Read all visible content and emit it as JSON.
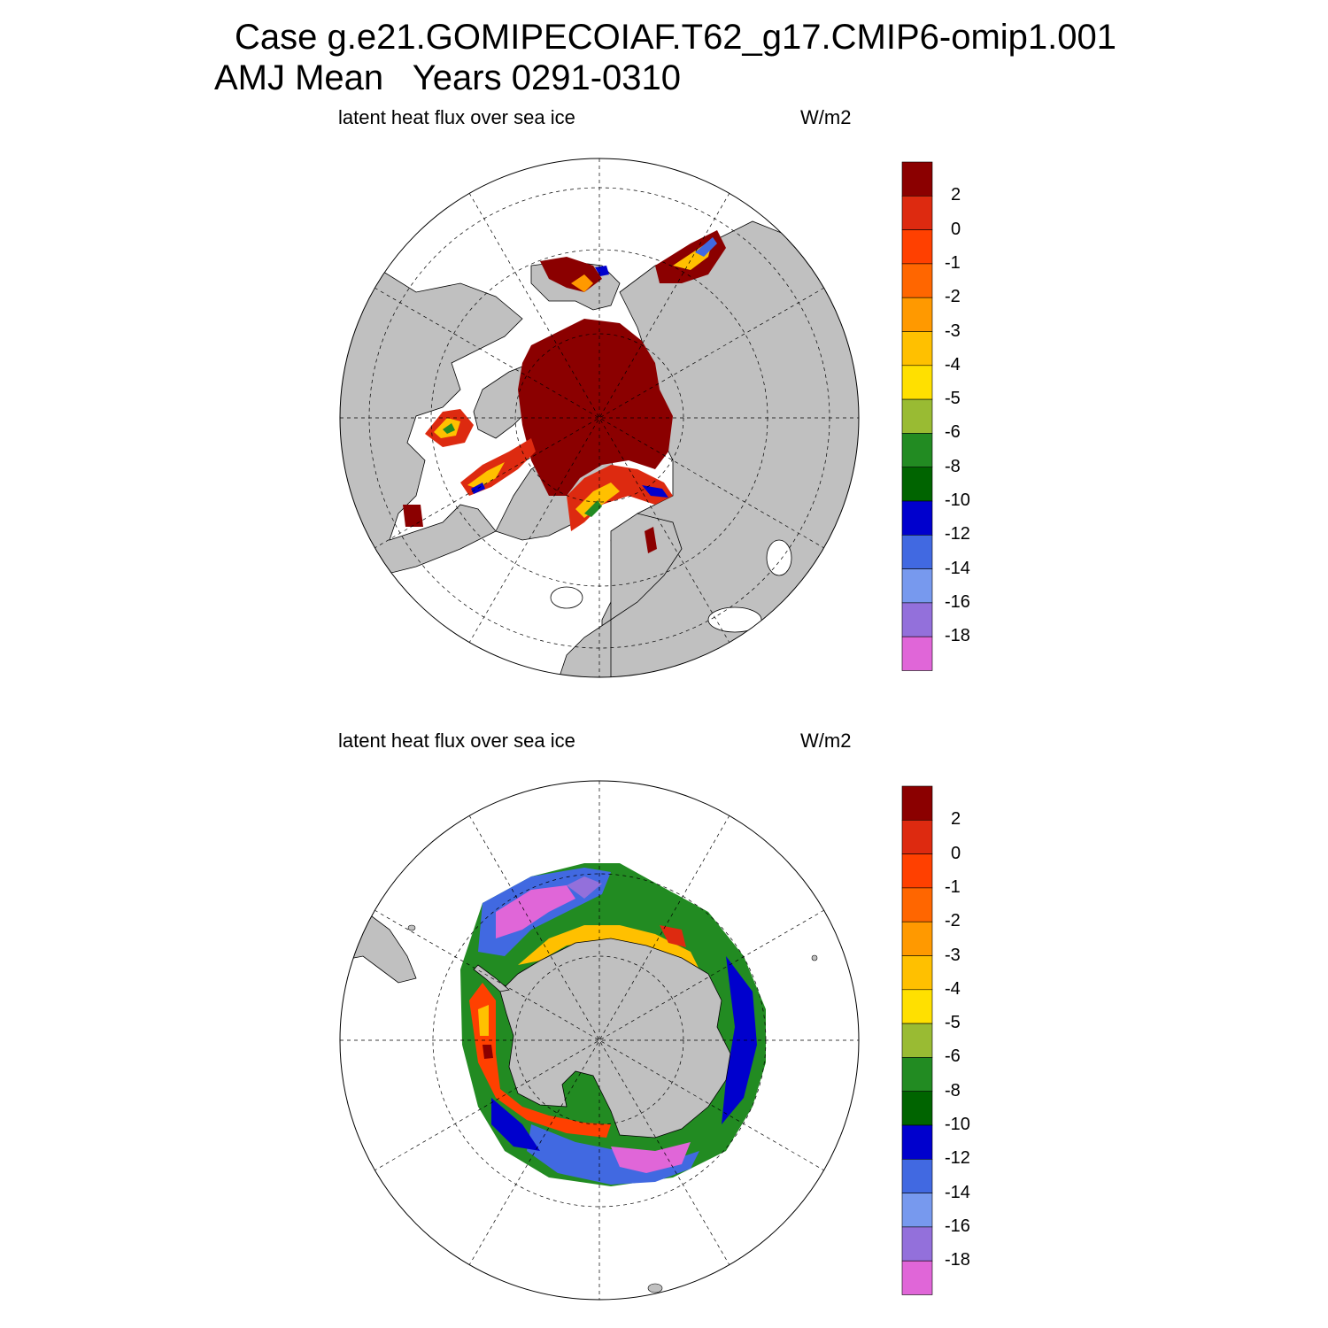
{
  "title": {
    "line1": "Case g.e21.GOMIPECOIAF.T62_g17.CMIP6-omip1.001",
    "line2": "AMJ Mean   Years 0291-0310"
  },
  "panels": [
    {
      "id": "north",
      "left_label": "latent heat flux over sea ice",
      "right_label": "W/m2"
    },
    {
      "id": "south",
      "left_label": "latent heat flux over sea ice",
      "right_label": "W/m2"
    }
  ],
  "colorbar": {
    "labels": [
      "2",
      "0",
      "-1",
      "-2",
      "-3",
      "-4",
      "-5",
      "-6",
      "-8",
      "-10",
      "-12",
      "-14",
      "-16",
      "-18"
    ],
    "colors": [
      "#8b0000",
      "#dd2a10",
      "#ff4000",
      "#ff6600",
      "#ff9900",
      "#ffc000",
      "#ffe000",
      "#99bb33",
      "#228b22",
      "#006400",
      "#0000cd",
      "#4169e1",
      "#7799ee",
      "#9370db",
      "#e066d8"
    ]
  },
  "map_colors": {
    "land": "#c0c0c0",
    "ocean": "#ffffff",
    "coast": "#000000"
  }
}
